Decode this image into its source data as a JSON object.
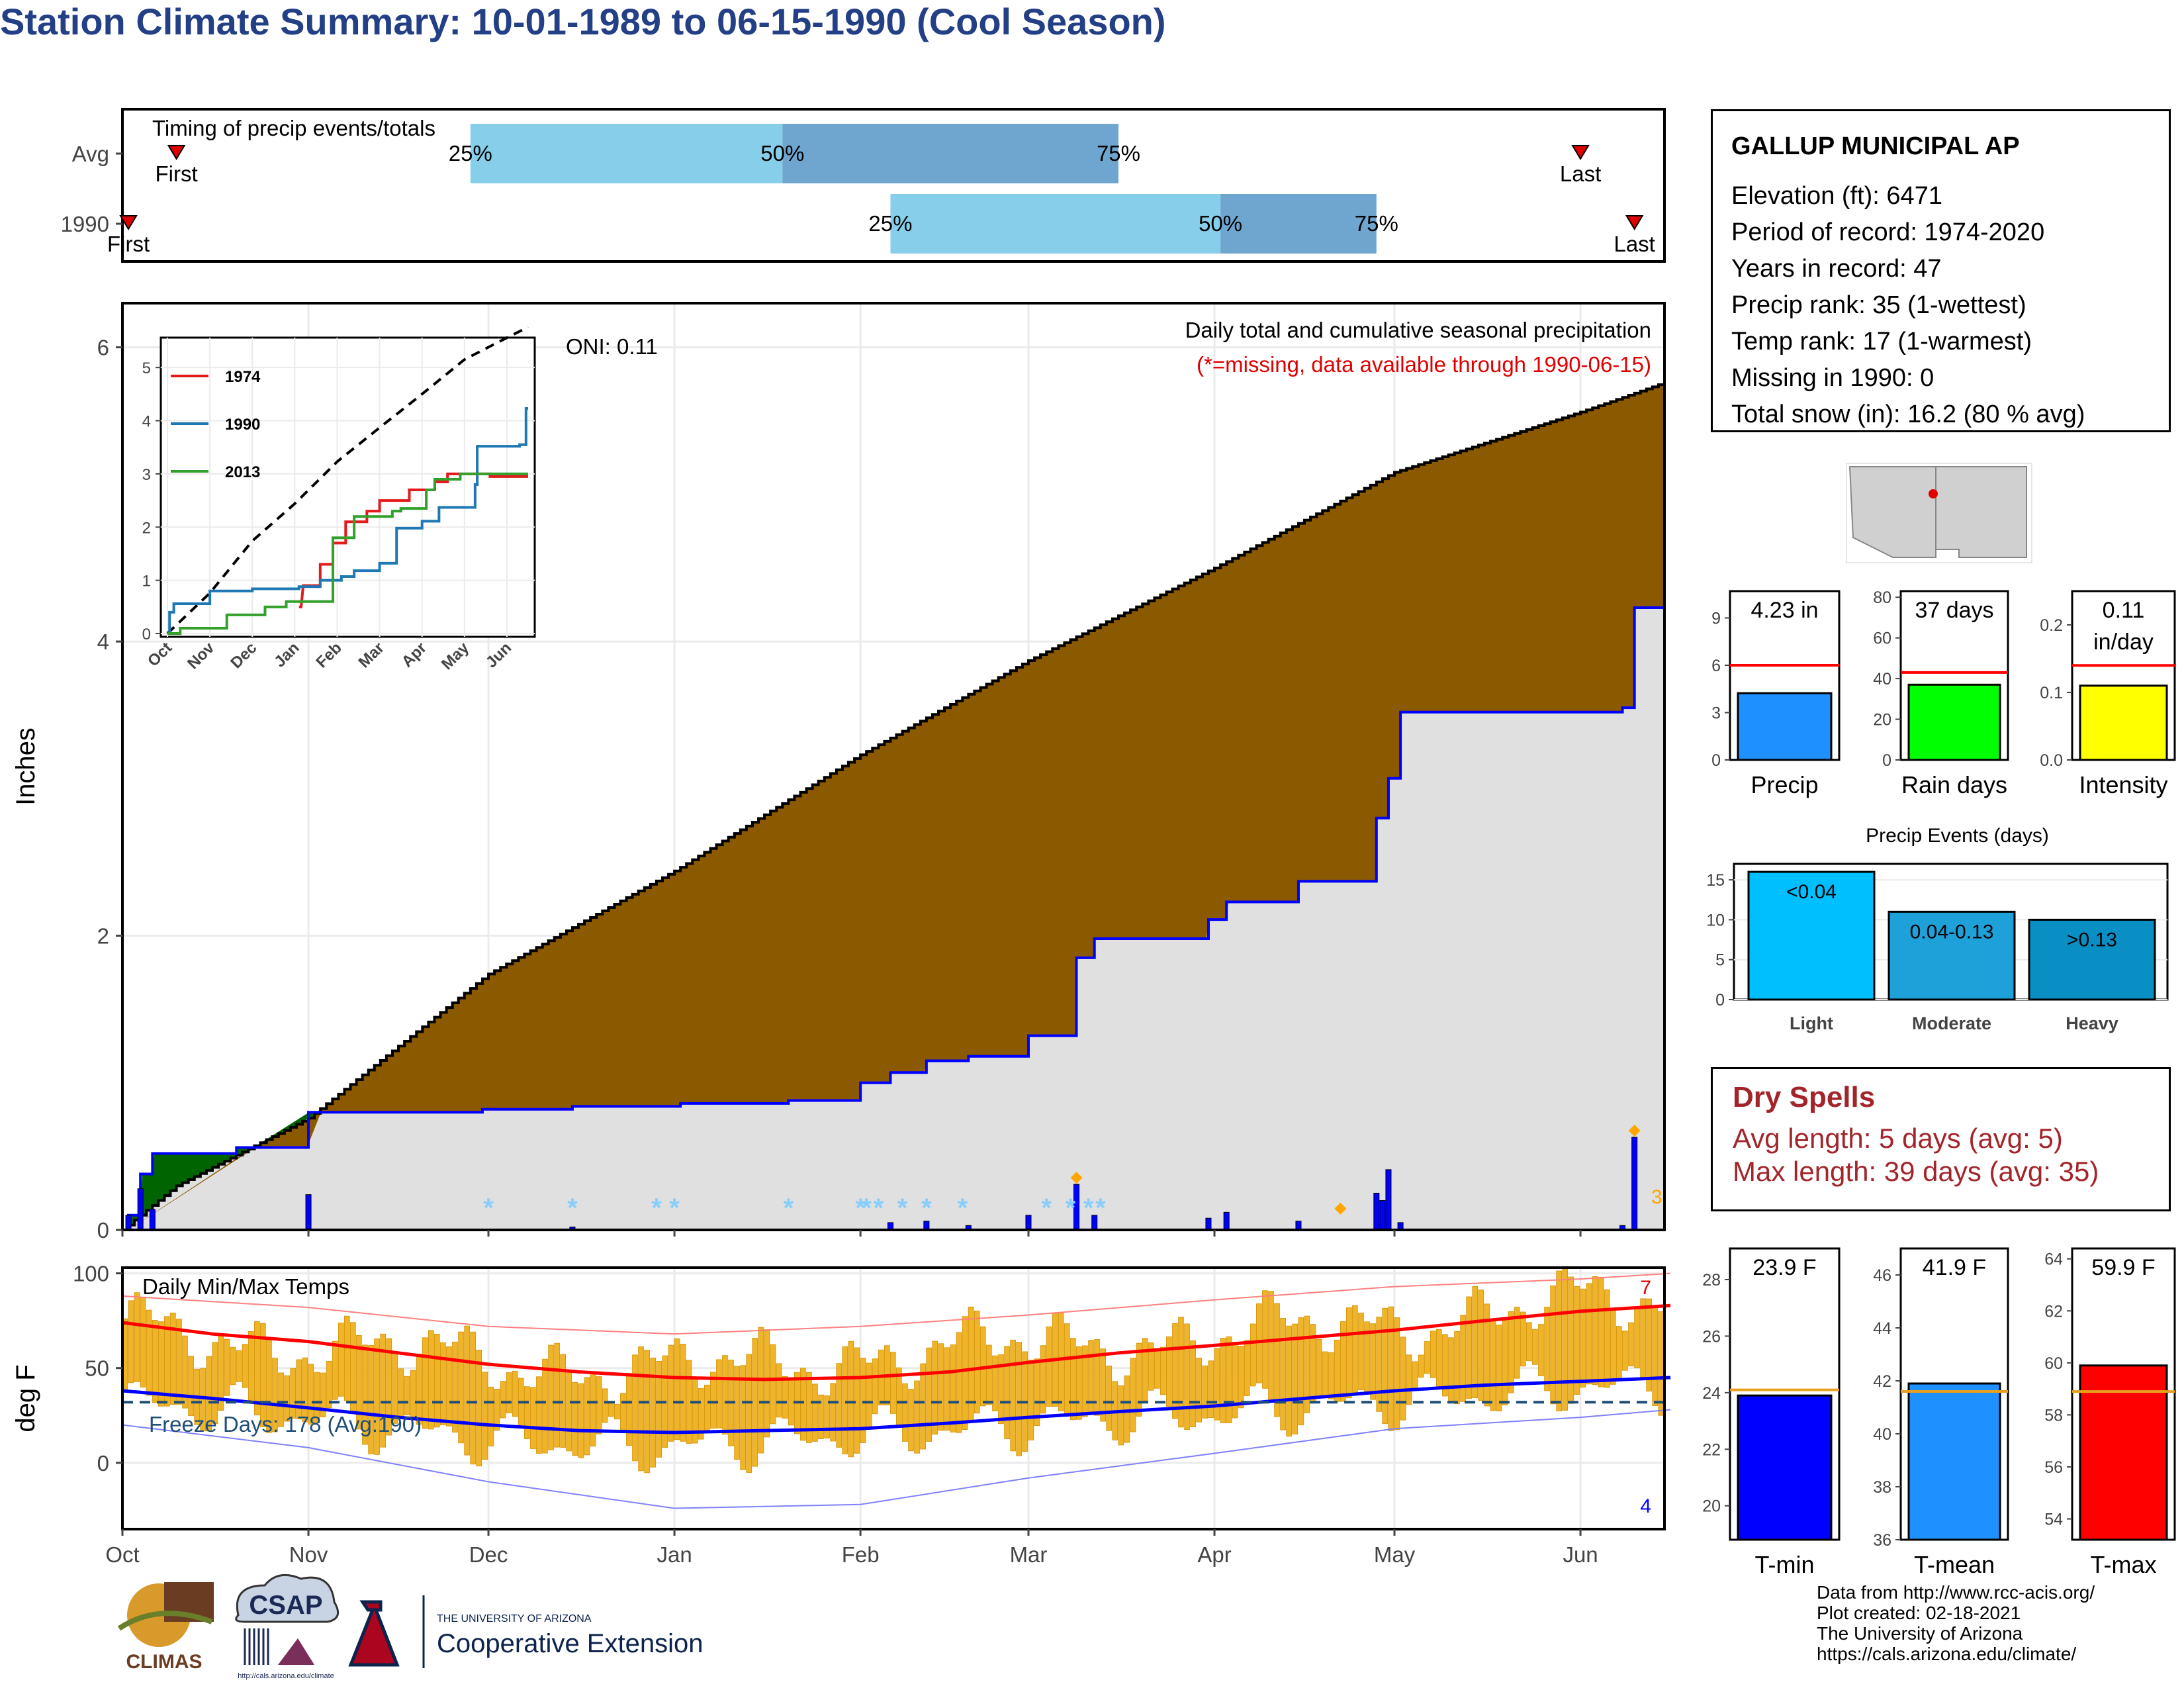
{
  "title": "Station Climate Summary: 10-01-1989 to 06-15-1990 (Cool Season)",
  "station": {
    "name": "GALLUP MUNICIPAL AP",
    "lines": [
      "Elevation (ft): 6471",
      "Period of record: 1974-2020",
      "Years in record: 47",
      "Precip rank: 35 (1-wettest)",
      "Temp rank: 17 (1-warmest)",
      "Missing in 1990: 0",
      "Total snow (in): 16.2 (80 % avg)"
    ]
  },
  "dry_spells": {
    "heading": "Dry Spells",
    "avg_line": "Avg length: 5 days (avg: 5)",
    "max_line": "Max length: 39 days (avg: 35)"
  },
  "credits": [
    "Data from http://www.rcc-acis.org/",
    "Plot created: 02-18-2021",
    "The University of Arizona",
    "https://cals.arizona.edu/climate/"
  ],
  "logos": {
    "climas": "CLIMAS",
    "csap": "CSAP",
    "csap_url": "http://cals.arizona.edu/climate",
    "ua_line1": "THE UNIVERSITY OF ARIZONA",
    "ua_line2": "Cooperative Extension"
  },
  "colors": {
    "title": "#233f86",
    "wet": "#006400",
    "dry": "#8b5a00",
    "obs_line": "#0000ff",
    "fill": "#e0e0e0",
    "dry_text": "#a3252b",
    "q1": "#87ceeb",
    "q2": "#6fa6cf",
    "temp_bar": "#f0b429"
  },
  "chart_data": [
    {
      "type": "bar",
      "title": "Timing of precip events/totals",
      "categories": [
        "Avg",
        "1990"
      ],
      "x_axis": "date",
      "series": [
        {
          "name": "Avg",
          "first": "1989-10-10",
          "p25": "1989-11-28",
          "p50": "1990-01-19",
          "p75": "1990-03-16",
          "last": "1990-06-01"
        },
        {
          "name": "1990",
          "first": "1989-10-02",
          "p25": "1990-02-06",
          "p50": "1990-04-02",
          "p75": "1990-04-28",
          "last": "1990-06-10"
        }
      ],
      "labels": {
        "first": "First",
        "last": "Last",
        "q25": "25%",
        "q50": "50%",
        "q75": "75%"
      }
    },
    {
      "type": "area",
      "title": "Daily total and cumulative seasonal precipitation",
      "subtitle": "(*=missing, data available through 1990-06-15)",
      "oni_label": "ONI: 0.11",
      "ylabel": "Inches",
      "ylim": [
        0,
        6.3
      ],
      "yticks": [
        0,
        2,
        4,
        6
      ],
      "xticks": [
        "Oct",
        "Nov",
        "Dec",
        "Jan",
        "Feb",
        "Mar",
        "Apr",
        "May",
        "Jun"
      ],
      "avg_cumulative": {
        "x": [
          "1989-10-01",
          "1989-10-10",
          "1989-11-01",
          "1989-12-01",
          "1990-01-01",
          "1990-02-01",
          "1990-03-01",
          "1990-04-01",
          "1990-05-01",
          "1990-06-01",
          "1990-06-15"
        ],
        "y": [
          0,
          0.3,
          0.76,
          1.74,
          2.44,
          3.23,
          3.87,
          4.5,
          5.15,
          5.56,
          5.76
        ]
      },
      "obs_cumulative": {
        "x": [
          "1989-10-01",
          "1989-10-02",
          "1989-10-04",
          "1989-10-06",
          "1989-10-20",
          "1989-10-31",
          "1989-11-01",
          "1989-11-30",
          "1989-12-15",
          "1990-01-02",
          "1990-01-20",
          "1990-02-01",
          "1990-02-06",
          "1990-02-12",
          "1990-02-19",
          "1990-03-01",
          "1990-03-09",
          "1990-03-12",
          "1990-03-31",
          "1990-04-03",
          "1990-04-15",
          "1990-04-28",
          "1990-04-30",
          "1990-05-02",
          "1990-06-08",
          "1990-06-10"
        ],
        "y": [
          0,
          0.1,
          0.38,
          0.52,
          0.56,
          0.56,
          0.8,
          0.82,
          0.84,
          0.86,
          0.88,
          1.0,
          1.07,
          1.15,
          1.18,
          1.32,
          1.85,
          1.98,
          2.11,
          2.23,
          2.37,
          2.8,
          3.07,
          3.52,
          3.55,
          4.23
        ]
      },
      "daily_precip": {
        "x": [
          "1989-10-02",
          "1989-10-04",
          "1989-10-06",
          "1989-11-01",
          "1989-12-15",
          "1990-02-06",
          "1990-02-12",
          "1990-02-19",
          "1990-03-01",
          "1990-03-09",
          "1990-03-12",
          "1990-03-31",
          "1990-04-03",
          "1990-04-15",
          "1990-04-28",
          "1990-04-29",
          "1990-04-30",
          "1990-05-02",
          "1990-06-08",
          "1990-06-10"
        ],
        "y": [
          0.1,
          0.28,
          0.14,
          0.24,
          0.02,
          0.05,
          0.06,
          0.03,
          0.1,
          0.31,
          0.1,
          0.08,
          0.12,
          0.06,
          0.25,
          0.2,
          0.41,
          0.05,
          0.03,
          0.63
        ]
      },
      "snow_markers": [
        "1989-12-01",
        "1989-12-15",
        "1989-12-29",
        "1990-01-01",
        "1990-01-20",
        "1990-02-01",
        "1990-02-02",
        "1990-02-04",
        "1990-02-08",
        "1990-02-12",
        "1990-02-18",
        "1990-03-04",
        "1990-03-08",
        "1990-03-11",
        "1990-03-13"
      ],
      "record_markers": [
        "1990-03-09",
        "1990-04-22",
        "1990-06-10"
      ],
      "record_count": "3",
      "inset": {
        "type": "line",
        "xticks": [
          "Oct",
          "Nov",
          "Dec",
          "Jan",
          "Feb",
          "Mar",
          "Apr",
          "May",
          "Jun"
        ],
        "yticks": [
          0,
          1,
          2,
          3,
          4,
          5
        ],
        "ylim": [
          0,
          5.5
        ],
        "series": [
          {
            "name": "1974",
            "color": "#e31a1c",
            "x": [
              3.1,
              3.15,
              3.2,
              3.6,
              3.6,
              3.9,
              3.9,
              4.2,
              4.2,
              4.7,
              4.7,
              5.0,
              5.0,
              5.7,
              5.7,
              6.3,
              6.3,
              6.6,
              6.6,
              7.0,
              7.0,
              7.6,
              7.6,
              8.5
            ],
            "y": [
              0.5,
              0.5,
              0.9,
              0.9,
              1.3,
              1.3,
              1.7,
              1.7,
              2.1,
              2.1,
              2.3,
              2.3,
              2.5,
              2.5,
              2.7,
              2.7,
              2.85,
              2.85,
              3.0,
              3.0,
              3.0,
              3.0,
              2.95,
              2.95
            ]
          },
          {
            "name": "1990",
            "color": "#1f78b4",
            "x": [
              0,
              0.05,
              0.05,
              0.15,
              0.15,
              1.0,
              1.0,
              2.0,
              2.0,
              3.1,
              3.1,
              3.6,
              3.6,
              4.1,
              4.1,
              4.4,
              4.4,
              5.0,
              5.0,
              5.4,
              5.4,
              6.0,
              6.0,
              6.4,
              6.4,
              7.25,
              7.25,
              7.3,
              7.3,
              8.3,
              8.3,
              8.45,
              8.45,
              8.5
            ],
            "y": [
              0,
              0,
              0.4,
              0.4,
              0.56,
              0.56,
              0.8,
              0.8,
              0.84,
              0.84,
              0.88,
              0.88,
              1.0,
              1.0,
              1.07,
              1.07,
              1.18,
              1.18,
              1.32,
              1.32,
              1.98,
              1.98,
              2.11,
              2.11,
              2.37,
              2.37,
              2.8,
              2.8,
              3.52,
              3.52,
              3.55,
              3.55,
              4.23,
              4.23
            ]
          },
          {
            "name": "2013",
            "color": "#33a02c",
            "x": [
              0,
              0.3,
              0.3,
              1.4,
              1.4,
              2.3,
              2.3,
              2.8,
              2.8,
              3.9,
              3.9,
              4.4,
              4.4,
              5.3,
              5.3,
              5.5,
              5.5,
              6.1,
              6.1,
              6.3,
              6.3,
              6.9,
              6.9,
              8.5
            ],
            "y": [
              0,
              0,
              0.1,
              0.1,
              0.35,
              0.35,
              0.5,
              0.5,
              0.6,
              0.6,
              1.8,
              1.8,
              2.2,
              2.2,
              2.3,
              2.3,
              2.35,
              2.35,
              2.7,
              2.7,
              2.9,
              2.9,
              3.0,
              3.0
            ]
          }
        ],
        "avg_line": {
          "x": [
            0,
            1,
            2,
            3,
            4,
            5,
            6,
            7,
            8,
            8.5
          ],
          "y": [
            0.0,
            0.76,
            1.74,
            2.44,
            3.23,
            3.87,
            4.5,
            5.15,
            5.56,
            5.76
          ]
        }
      }
    },
    {
      "type": "bar",
      "title": "",
      "categories": [
        "Precip",
        "Rain days",
        "Intensity"
      ],
      "series": [
        {
          "name": "Precip",
          "value": 4.23,
          "label": "4.23 in",
          "avg": 6.0,
          "ylim": [
            0,
            10.7
          ],
          "yticks": [
            0,
            3,
            6,
            9
          ],
          "color": "#1e90ff"
        },
        {
          "name": "Rain days",
          "value": 37,
          "label": "37 days",
          "avg": 43,
          "ylim": [
            0,
            83
          ],
          "yticks": [
            0,
            20,
            40,
            60,
            80
          ],
          "color": "#00ff00"
        },
        {
          "name": "Intensity",
          "value": 0.11,
          "label": "0.11 in/day",
          "label_lines": [
            "0.11",
            "in/day"
          ],
          "avg": 0.14,
          "ylim": [
            0,
            0.25
          ],
          "yticks": [
            0.0,
            0.1,
            0.2
          ],
          "ytick_labels": [
            "0.0",
            "0.1",
            "0.2"
          ],
          "color": "#ffff00"
        }
      ]
    },
    {
      "type": "bar",
      "title": "Precip Events (days)",
      "categories": [
        "Light",
        "Moderate",
        "Heavy"
      ],
      "values": [
        16,
        11,
        10
      ],
      "bar_labels": [
        "<0.04",
        "0.04-0.13",
        ">0.13"
      ],
      "colors": [
        "#00bfff",
        "#1ea1d8",
        "#0a8fc5"
      ],
      "ylim": [
        0,
        17
      ],
      "yticks": [
        0,
        5,
        10,
        15
      ]
    },
    {
      "type": "bar",
      "title": "Daily Min/Max Temps",
      "ylabel": "deg F",
      "ylim": [
        -35,
        103
      ],
      "yticks": [
        0,
        50,
        100
      ],
      "xticks": [
        "Oct",
        "Nov",
        "Dec",
        "Jan",
        "Feb",
        "Mar",
        "Apr",
        "May",
        "Jun"
      ],
      "freeze_label": "Freeze Days: 178 (Avg:190)",
      "freeze_line": 32,
      "record_high_count": "7",
      "record_low_count": "4",
      "avg_max": {
        "x": [
          0,
          0.5,
          1,
          1.5,
          2,
          2.5,
          3,
          3.5,
          4,
          4.5,
          5,
          5.5,
          6,
          6.5,
          7,
          7.5,
          8,
          8.5
        ],
        "y": [
          74,
          68,
          64,
          58,
          52,
          48,
          45,
          44,
          45,
          48,
          53,
          58,
          62,
          66,
          70,
          75,
          80,
          83
        ]
      },
      "avg_min": {
        "x": [
          0,
          0.5,
          1,
          1.5,
          2,
          2.5,
          3,
          3.5,
          4,
          4.5,
          5,
          5.5,
          6,
          6.5,
          7,
          7.5,
          8,
          8.5
        ],
        "y": [
          38,
          34,
          29,
          24,
          20,
          17,
          16,
          17,
          18,
          21,
          24,
          27,
          30,
          34,
          38,
          41,
          43,
          45
        ]
      },
      "record_max": {
        "x": [
          0,
          1,
          2,
          3,
          4,
          5,
          6,
          7,
          8,
          8.5
        ],
        "y": [
          88,
          82,
          72,
          68,
          72,
          78,
          86,
          93,
          97,
          100
        ]
      },
      "record_min": {
        "x": [
          0,
          1,
          2,
          3,
          4,
          5,
          6,
          7,
          8,
          8.5
        ],
        "y": [
          20,
          8,
          -10,
          -24,
          -22,
          -8,
          5,
          18,
          24,
          28
        ]
      },
      "obs_max_monthly": [
        70,
        62,
        54,
        48,
        56,
        62,
        66,
        74,
        84
      ],
      "obs_min_monthly": [
        32,
        24,
        12,
        8,
        14,
        20,
        26,
        32,
        40
      ]
    },
    {
      "type": "bar",
      "title": "",
      "categories": [
        "T-min",
        "T-mean",
        "T-max"
      ],
      "series": [
        {
          "name": "T-min",
          "value": 23.9,
          "label": "23.9 F",
          "avg": 24.1,
          "ylim": [
            18.8,
            29.1
          ],
          "yticks": [
            20,
            22,
            24,
            26,
            28
          ],
          "color": "#0000ff"
        },
        {
          "name": "T-mean",
          "value": 41.9,
          "label": "41.9 F",
          "avg": 41.6,
          "ylim": [
            36,
            47
          ],
          "yticks": [
            36,
            38,
            40,
            42,
            44,
            46
          ],
          "color": "#1e90ff"
        },
        {
          "name": "T-max",
          "value": 59.9,
          "label": "59.9 F",
          "avg": 58.9,
          "ylim": [
            53.2,
            64.4
          ],
          "yticks": [
            54,
            56,
            58,
            60,
            62,
            64
          ],
          "color": "#ff0000"
        }
      ]
    }
  ]
}
